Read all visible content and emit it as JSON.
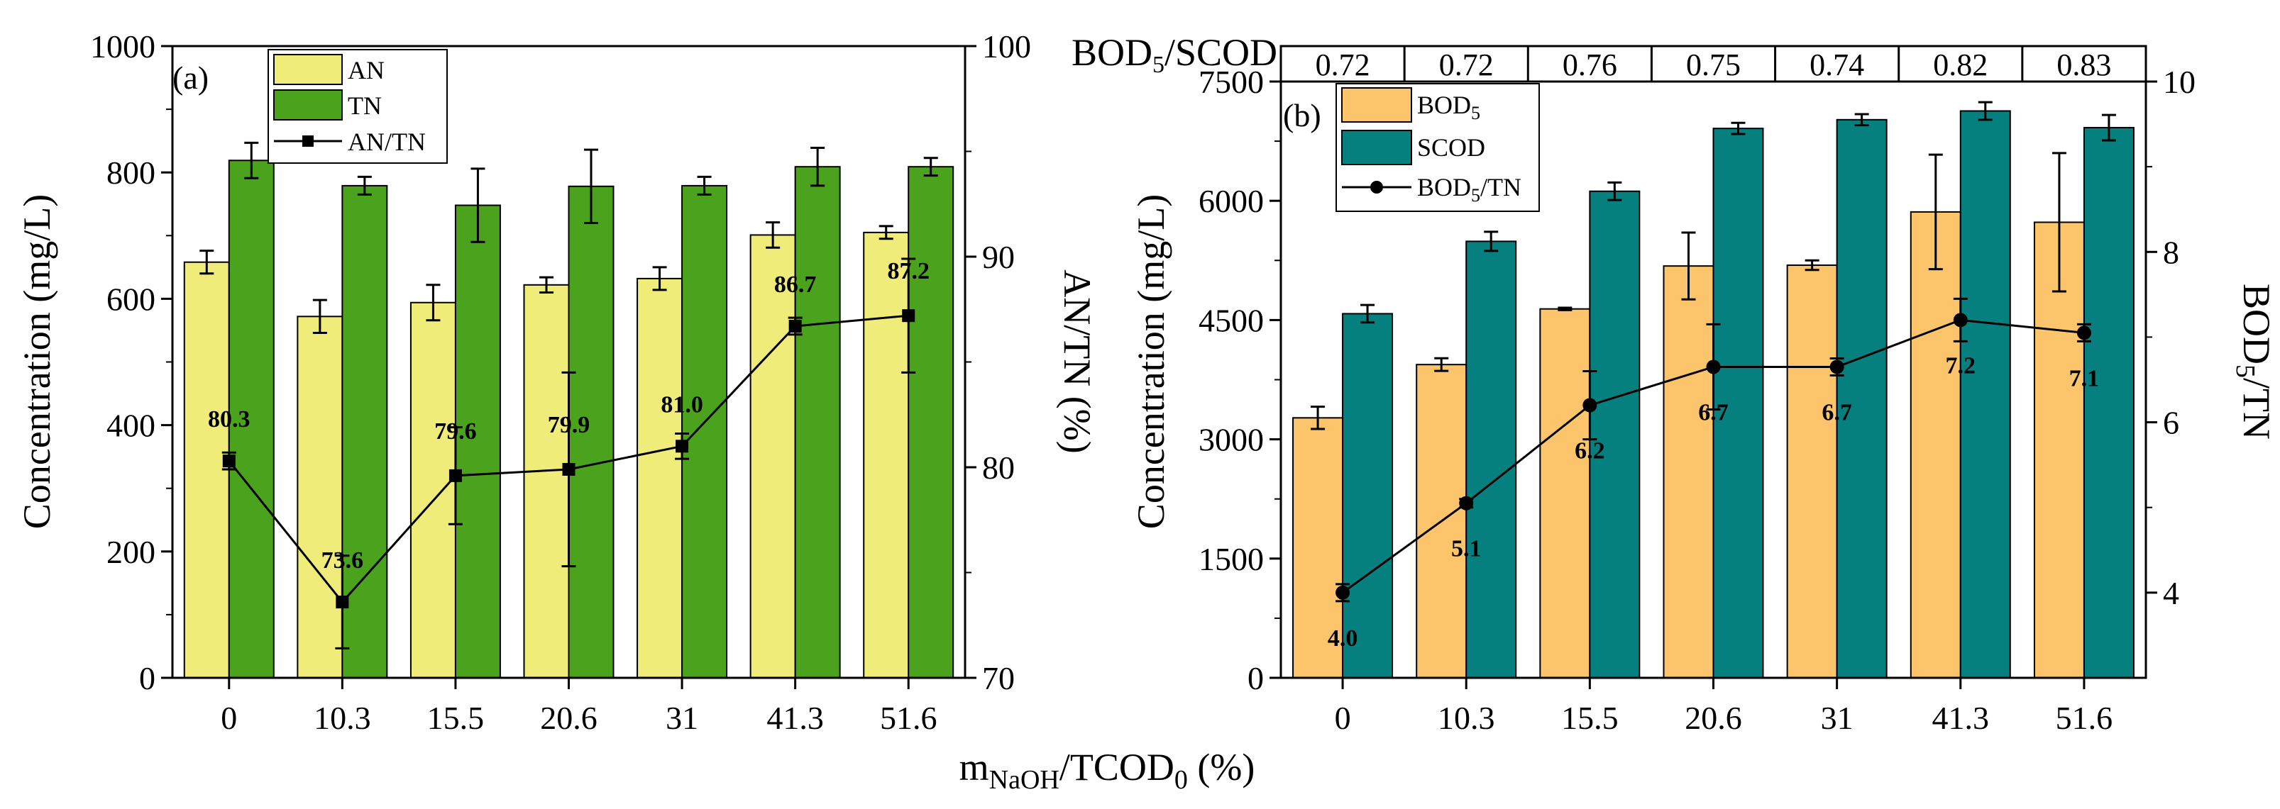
{
  "shared_xlabel": {
    "main": "m",
    "sub": "NaOH",
    "rest": "/TCOD",
    "sub2": "0",
    "tail": " (%)"
  },
  "chart_data": [
    {
      "type": "bar",
      "panel_label": "(a)",
      "categories": [
        "0",
        "10.3",
        "15.5",
        "20.6",
        "31",
        "41.3",
        "51.6"
      ],
      "series": [
        {
          "name": "AN",
          "color": "#f0ec7a",
          "values": [
            658,
            572,
            594,
            622,
            632,
            701,
            705
          ],
          "errors": [
            18,
            26,
            28,
            12,
            18,
            20,
            10
          ]
        },
        {
          "name": "TN",
          "color": "#4ba21c",
          "values": [
            819,
            779,
            748,
            778,
            779,
            809,
            809
          ],
          "errors": [
            28,
            14,
            58,
            58,
            14,
            30,
            14
          ]
        }
      ],
      "line": {
        "name": "AN/TN",
        "color": "#000000",
        "marker": "square",
        "values": [
          80.3,
          73.6,
          79.6,
          79.9,
          81.0,
          86.7,
          87.2
        ],
        "errors": [
          0.4,
          2.2,
          2.3,
          4.6,
          0.6,
          0.4,
          2.7
        ],
        "labels": [
          "80.3",
          "73.6",
          "79.6",
          "79.9",
          "81.0",
          "86.7",
          "87.2"
        ]
      },
      "ylabel": "Concentration (mg/L)",
      "ylim": [
        0,
        1000
      ],
      "yticks": [
        "0",
        "200",
        "400",
        "600",
        "800",
        "1000"
      ],
      "y2label": "AN/TN (%)",
      "y2lim": [
        70,
        100
      ],
      "y2ticks": [
        "70",
        "80",
        "90",
        "100"
      ],
      "legend_position": "top-left"
    },
    {
      "type": "bar",
      "panel_label": "(b)",
      "categories": [
        "0",
        "10.3",
        "15.5",
        "20.6",
        "31",
        "41.3",
        "51.6"
      ],
      "series": [
        {
          "name": "BOD5",
          "label_main": "BOD",
          "label_sub": "5",
          "color": "#fcc56c",
          "values": [
            3270,
            3940,
            4640,
            5180,
            5190,
            5860,
            5730
          ],
          "errors": [
            140,
            80,
            15,
            420,
            60,
            720,
            870
          ]
        },
        {
          "name": "SCOD",
          "label_main": "SCOD",
          "label_sub": "",
          "color": "#05807f",
          "values": [
            4580,
            5490,
            6120,
            6910,
            7020,
            7130,
            6920
          ],
          "errors": [
            110,
            120,
            110,
            70,
            70,
            110,
            160
          ]
        }
      ],
      "line": {
        "name": "BOD5/TN",
        "label_main": "BOD",
        "label_sub": "5",
        "label_tail": "/TN",
        "color": "#000000",
        "marker": "circle",
        "values": [
          4.0,
          5.05,
          6.2,
          6.65,
          6.65,
          7.2,
          7.05
        ],
        "errors": [
          0.1,
          0.05,
          0.4,
          0.5,
          0.1,
          0.25,
          0.1
        ],
        "labels": [
          "4.0",
          "5.1",
          "6.2",
          "6.7",
          "6.7",
          "7.2",
          "7.1"
        ]
      },
      "ylabel": "Concentration (mg/L)",
      "ylim": [
        0,
        7500
      ],
      "yticks": [
        "0",
        "1500",
        "3000",
        "4500",
        "6000",
        "7500"
      ],
      "y2label_main": "BOD",
      "y2label_sub": "5",
      "y2label_tail": "/TN",
      "y2lim": [
        3,
        10
      ],
      "y2ticks": [
        "4",
        "6",
        "8",
        "10"
      ],
      "ratio_row": {
        "label_main": "BOD",
        "label_sub": "5",
        "label_tail": "/SCOD",
        "values": [
          "0.72",
          "0.72",
          "0.76",
          "0.75",
          "0.74",
          "0.82",
          "0.83"
        ]
      },
      "legend_position": "top-left"
    }
  ]
}
